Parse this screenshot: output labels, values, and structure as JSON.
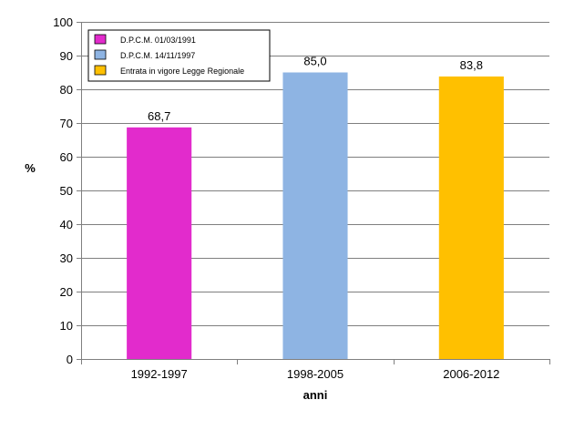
{
  "chart_data": {
    "type": "bar",
    "title": "",
    "categories": [
      "1992-1997",
      "1998-2005",
      "2006-2012"
    ],
    "values": [
      68.7,
      85.0,
      83.8
    ],
    "value_labels": [
      "68,7",
      "85,0",
      "83,8"
    ],
    "colors": [
      "#e22bcc",
      "#8eb4e3",
      "#ffc000"
    ],
    "legend": [
      {
        "label": "D.P.C.M. 01/03/1991",
        "color": "#e22bcc"
      },
      {
        "label": "D.P.C.M. 14/11/1997",
        "color": "#8eb4e3"
      },
      {
        "label": "Entrata in vigore Legge Regionale",
        "color": "#ffc000"
      }
    ],
    "legend_position": "top-left",
    "xlabel": "anni",
    "ylabel": "%",
    "ylim": [
      0,
      100
    ],
    "yticks": [
      0,
      10,
      20,
      30,
      40,
      50,
      60,
      70,
      80,
      90,
      100
    ],
    "grid": true
  }
}
